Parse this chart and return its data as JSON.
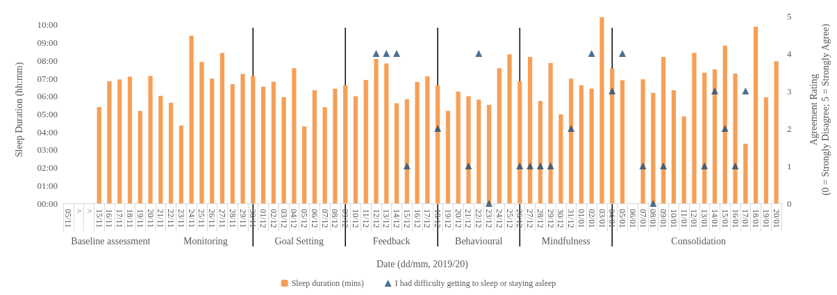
{
  "chart_data": {
    "type": "bar",
    "xlabel": "Date (dd/mm, 2019/20)",
    "ylabel": "Sleep Duration (hh:mm)",
    "y2label": "Agreement Rating\n(0 = Strongly Disagree; 5 = Strongly Agree)",
    "categories": [
      "05/11",
      "^",
      "^",
      "15/11",
      "16/11",
      "17/11",
      "18/11",
      "19/11",
      "20/11",
      "21/11",
      "22/11",
      "23/11",
      "24/11",
      "25/11",
      "26/11",
      "27/11",
      "28/11",
      "29/11",
      "30/11",
      "01/12",
      "02/12",
      "03/12",
      "04/12",
      "05/12",
      "06/12",
      "07/12",
      "08/12",
      "09/12",
      "10/12",
      "11/12",
      "12/12",
      "13/12",
      "14/12",
      "15/12",
      "16/12",
      "17/12",
      "18/12",
      "19/12",
      "20/12",
      "21/12",
      "22/12",
      "23/12",
      "24/12",
      "25/12",
      "26/12",
      "27/12",
      "28/12",
      "29/12",
      "30/12",
      "31/12",
      "01/01",
      "02/01",
      "03/01",
      "04/01",
      "05/01",
      "06/01",
      "07/01",
      "08/01",
      "09/01",
      "10/01",
      "11/01",
      "12/01",
      "13/01",
      "14/01",
      "15/01",
      "16/01",
      "17/01",
      "18/01",
      "19/01",
      "20/01"
    ],
    "series": [
      {
        "name": "Sleep duration (mins)",
        "color": "#f79f56",
        "values": [
          null,
          null,
          null,
          5.4,
          6.84,
          6.94,
          7.1,
          5.18,
          7.14,
          6.03,
          5.64,
          4.36,
          9.39,
          7.92,
          6.99,
          8.43,
          6.68,
          7.25,
          7.14,
          6.53,
          6.82,
          5.95,
          7.57,
          4.31,
          6.34,
          5.39,
          6.43,
          6.62,
          6.01,
          6.91,
          8.09,
          7.84,
          5.61,
          5.83,
          6.81,
          7.12,
          6.62,
          5.18,
          6.26,
          6.01,
          5.81,
          5.52,
          7.57,
          8.35,
          6.84,
          8.21,
          5.74,
          7.87,
          4.99,
          6.99,
          6.62,
          6.43,
          10.43,
          7.55,
          6.9,
          null,
          6.95,
          6.19,
          8.21,
          6.34,
          4.87,
          8.43,
          7.32,
          7.51,
          8.84,
          7.27,
          3.34,
          9.9,
          5.94,
          7.96
        ]
      },
      {
        "name": "I had difficulty getting to sleep or staying asleep",
        "type": "scatter",
        "axis": "y2",
        "marker": "triangle",
        "color": "#1f4e79",
        "values": [
          null,
          null,
          null,
          null,
          null,
          null,
          null,
          null,
          null,
          null,
          null,
          null,
          null,
          null,
          null,
          null,
          null,
          null,
          null,
          null,
          null,
          null,
          null,
          null,
          null,
          null,
          null,
          null,
          null,
          null,
          4,
          4,
          4,
          1,
          null,
          null,
          2,
          null,
          null,
          1,
          4,
          0,
          null,
          null,
          1,
          1,
          1,
          1,
          null,
          2,
          null,
          4,
          null,
          3,
          4,
          null,
          1,
          0,
          1,
          null,
          null,
          null,
          1,
          3,
          2,
          1,
          3,
          null,
          null,
          null
        ]
      }
    ],
    "ylim": [
      0,
      10.5
    ],
    "yticks": [
      {
        "value": 0,
        "label": "00:00"
      },
      {
        "value": 1,
        "label": "01:00"
      },
      {
        "value": 2,
        "label": "02:00"
      },
      {
        "value": 3,
        "label": "03:00"
      },
      {
        "value": 4,
        "label": "04:00"
      },
      {
        "value": 5,
        "label": "05:00"
      },
      {
        "value": 6,
        "label": "06:00"
      },
      {
        "value": 7,
        "label": "07:00"
      },
      {
        "value": 8,
        "label": "08:00"
      },
      {
        "value": 9,
        "label": "09:00"
      },
      {
        "value": 10,
        "label": "10:00"
      }
    ],
    "y2lim": [
      0,
      5
    ],
    "y2ticks": [
      0,
      1,
      2,
      3,
      4,
      5
    ],
    "ref_lines": [
      {
        "axis": "x",
        "value": "30/11"
      },
      {
        "axis": "x",
        "value": "09/12"
      },
      {
        "axis": "x",
        "value": "18/12"
      },
      {
        "axis": "x",
        "value": "26/12"
      },
      {
        "axis": "x",
        "value": "04/01"
      }
    ],
    "annotations": [
      "Baseline assessment",
      "Monitoring",
      "Goal Setting",
      "Feedback",
      "Behavioural",
      "Mindfulness",
      "Consolidation"
    ],
    "grid": false,
    "legend": "bottom"
  }
}
